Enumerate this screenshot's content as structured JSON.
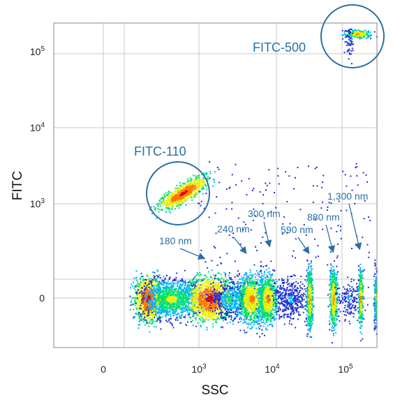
{
  "chart_data": {
    "type": "scatter",
    "title": "",
    "xlabel": "SSC",
    "ylabel": "FITC",
    "x_scale": "biexponential",
    "y_scale": "biexponential",
    "grid": true,
    "x_ticks": [
      {
        "value": 0,
        "base": "0",
        "exp": ""
      },
      {
        "value": 1000,
        "base": "10",
        "exp": "3"
      },
      {
        "value": 10000,
        "base": "10",
        "exp": "4"
      },
      {
        "value": 100000,
        "base": "10",
        "exp": "5"
      }
    ],
    "y_ticks": [
      {
        "value": 0,
        "base": "0",
        "exp": ""
      },
      {
        "value": 1000,
        "base": "10",
        "exp": "3"
      },
      {
        "value": 10000,
        "base": "10",
        "exp": "4"
      },
      {
        "value": 100000,
        "base": "10",
        "exp": "5"
      }
    ],
    "colors": {
      "annotation": "#2a6fa3",
      "density_scale": [
        "#1c2fd6",
        "#00b4ff",
        "#00e070",
        "#e8f000",
        "#ff7a00",
        "#e00000"
      ]
    },
    "populations": [
      {
        "label": "180 nm",
        "ssc": 1300
      },
      {
        "label": "240 nm",
        "ssc": 4000
      },
      {
        "label": "300 nm",
        "ssc": 6500
      },
      {
        "label": "590 nm",
        "ssc": 25000
      },
      {
        "label": "880 nm",
        "ssc": 52000
      },
      {
        "label": "1,300 nm",
        "ssc": 120000
      }
    ],
    "gates": [
      {
        "label": "FITC-110",
        "ssc": 800,
        "fitc": 1300
      },
      {
        "label": "FITC-500",
        "ssc": 140000,
        "fitc": 200000
      }
    ]
  }
}
